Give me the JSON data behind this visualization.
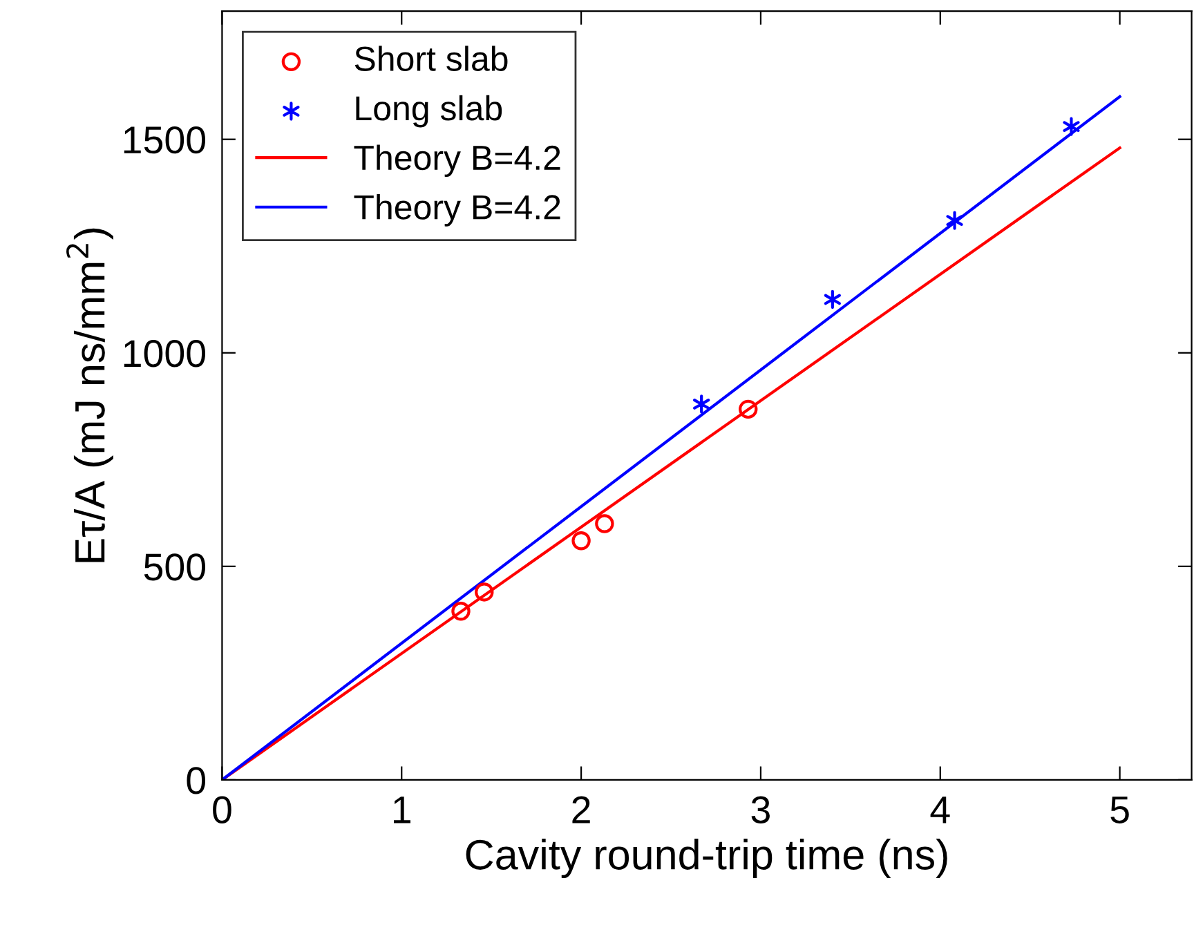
{
  "chart_data": {
    "type": "scatter",
    "xlabel": "Cavity round-trip time (ns)",
    "ylabel": "Eτ/A (mJ ns/mm$^{2}$)",
    "xlim": [
      0,
      5.4
    ],
    "ylim": [
      0,
      1800
    ],
    "xticks": [
      0,
      1,
      2,
      3,
      4,
      5
    ],
    "yticks": [
      0,
      500,
      1000,
      1500
    ],
    "grid": false,
    "legend": "top left",
    "series": [
      {
        "name": "Short slab",
        "marker": "circle",
        "color": "#ff0000",
        "x": [
          1.33,
          1.46,
          2.0,
          2.13,
          2.93
        ],
        "values": [
          395,
          440,
          560,
          600,
          868
        ]
      },
      {
        "name": "Long slab",
        "marker": "cross",
        "color": "#0000ff",
        "x": [
          2.67,
          3.4,
          4.08,
          4.73
        ],
        "values": [
          880,
          1125,
          1310,
          1530
        ]
      },
      {
        "name": "Theory B=4.2",
        "type": "line",
        "marker": "none",
        "color": "#ff0000",
        "x": [
          0,
          5
        ],
        "values": [
          0,
          1480
        ]
      },
      {
        "name": "Theory B=4.2",
        "type": "line",
        "marker": "none",
        "color": "#0000ff",
        "x": [
          0,
          5
        ],
        "values": [
          0,
          1600
        ]
      }
    ]
  }
}
